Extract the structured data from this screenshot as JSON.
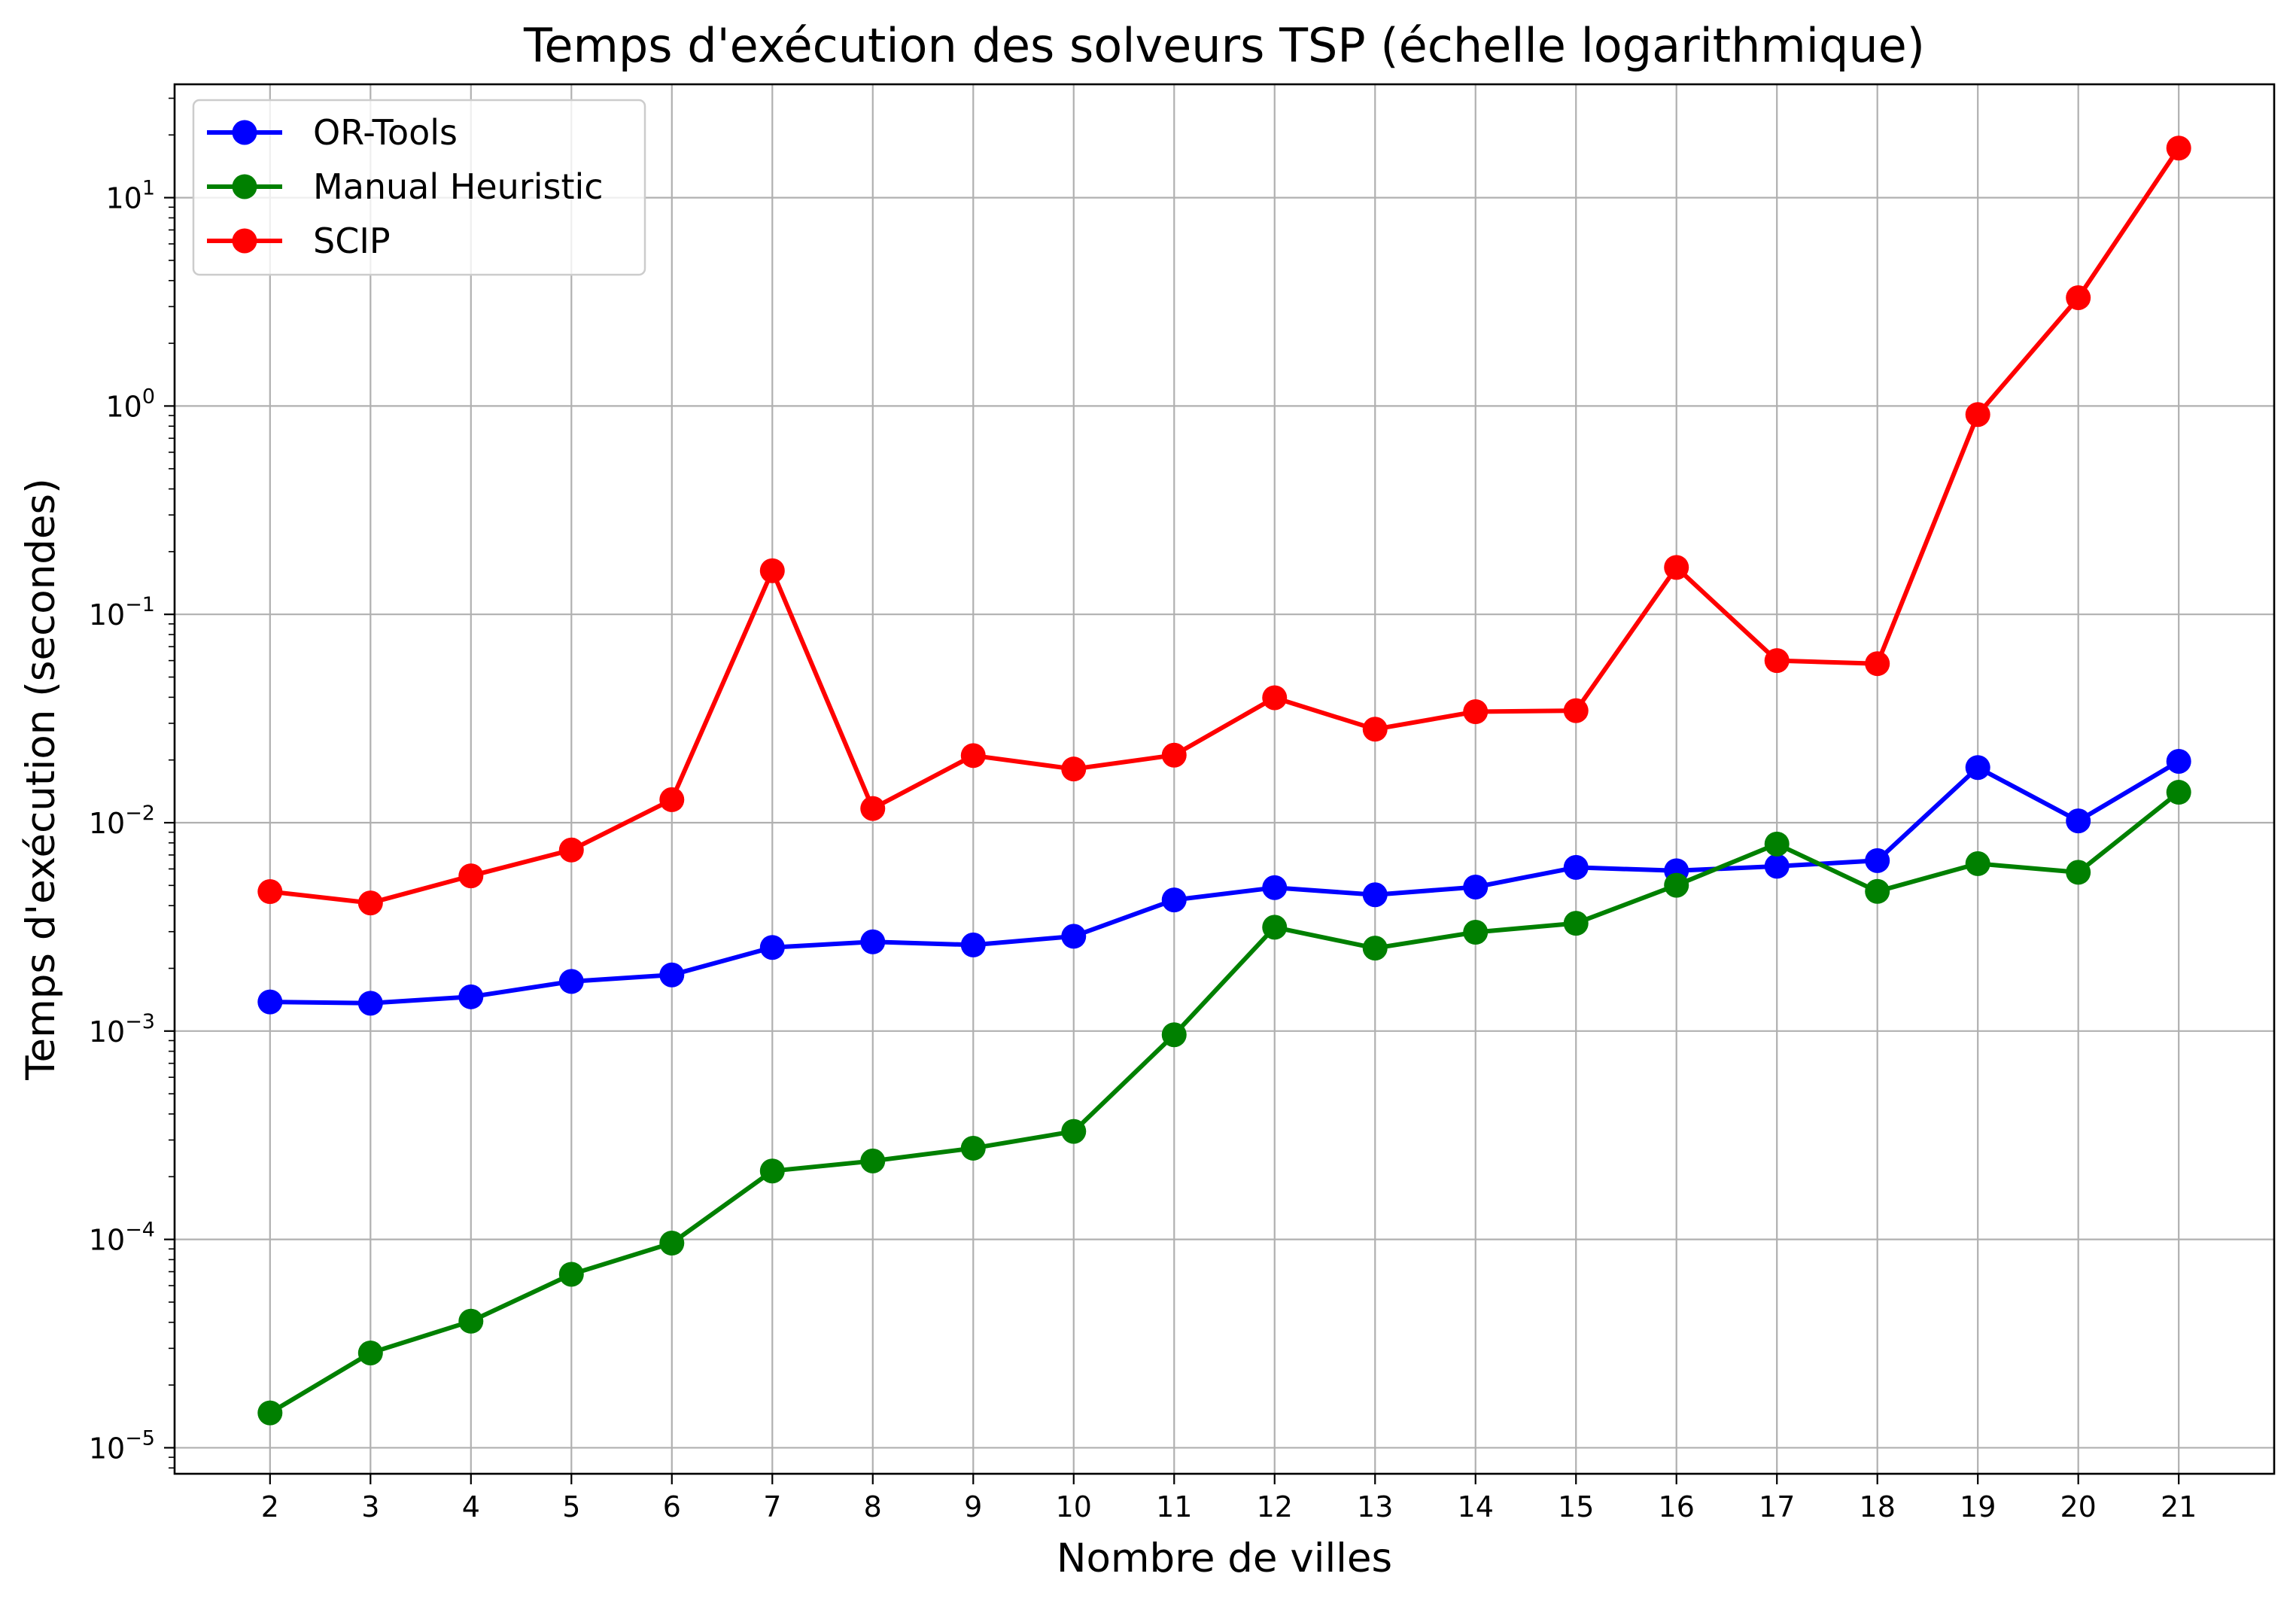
{
  "chart_data": {
    "type": "line",
    "title": "Temps d'exécution des solveurs TSP (échelle logarithmique)",
    "xlabel": "Nombre de villes",
    "ylabel": "Temps d'exécution (secondes)",
    "x": [
      2,
      3,
      4,
      5,
      6,
      7,
      8,
      9,
      10,
      11,
      12,
      13,
      14,
      15,
      16,
      17,
      18,
      19,
      20,
      21
    ],
    "x_ticks": [
      "2",
      "3",
      "4",
      "5",
      "6",
      "7",
      "8",
      "9",
      "10",
      "11",
      "12",
      "13",
      "14",
      "15",
      "16",
      "17",
      "18",
      "19",
      "20",
      "21"
    ],
    "xlim": [
      1.05,
      21.95
    ],
    "yscale": "log",
    "ylim": [
      7.5e-06,
      35
    ],
    "y_ticks": [
      {
        "value": 1e-05,
        "base": "10",
        "exp": "−5"
      },
      {
        "value": 0.0001,
        "base": "10",
        "exp": "−4"
      },
      {
        "value": 0.001,
        "base": "10",
        "exp": "−3"
      },
      {
        "value": 0.01,
        "base": "10",
        "exp": "−2"
      },
      {
        "value": 0.1,
        "base": "10",
        "exp": "−1"
      },
      {
        "value": 1,
        "base": "10",
        "exp": "0"
      },
      {
        "value": 10,
        "base": "10",
        "exp": "1"
      }
    ],
    "grid": true,
    "legend_position": "top-left",
    "series": [
      {
        "name": "OR-Tools",
        "color": "#0000ff",
        "marker": "circle",
        "values": [
          0.00138,
          0.00136,
          0.00146,
          0.00173,
          0.00186,
          0.00252,
          0.00268,
          0.00259,
          0.00285,
          0.00426,
          0.00488,
          0.00451,
          0.00491,
          0.0061,
          0.00588,
          0.00618,
          0.00658,
          0.0184,
          0.0102,
          0.0197
        ]
      },
      {
        "name": "Manual Heuristic",
        "color": "#008000",
        "marker": "circle",
        "values": [
          1.47e-05,
          2.85e-05,
          4.05e-05,
          6.8e-05,
          9.6e-05,
          0.000213,
          0.000238,
          0.000274,
          0.00033,
          0.00096,
          0.00315,
          0.0025,
          0.00298,
          0.00329,
          0.00501,
          0.0079,
          0.00468,
          0.00636,
          0.00578,
          0.014
        ]
      },
      {
        "name": "SCIP",
        "color": "#ff0000",
        "marker": "circle",
        "values": [
          0.00467,
          0.00412,
          0.00556,
          0.0074,
          0.0129,
          0.162,
          0.0117,
          0.021,
          0.0181,
          0.0211,
          0.0398,
          0.0281,
          0.0341,
          0.0345,
          0.168,
          0.06,
          0.058,
          0.91,
          3.31,
          17.3
        ]
      }
    ]
  }
}
